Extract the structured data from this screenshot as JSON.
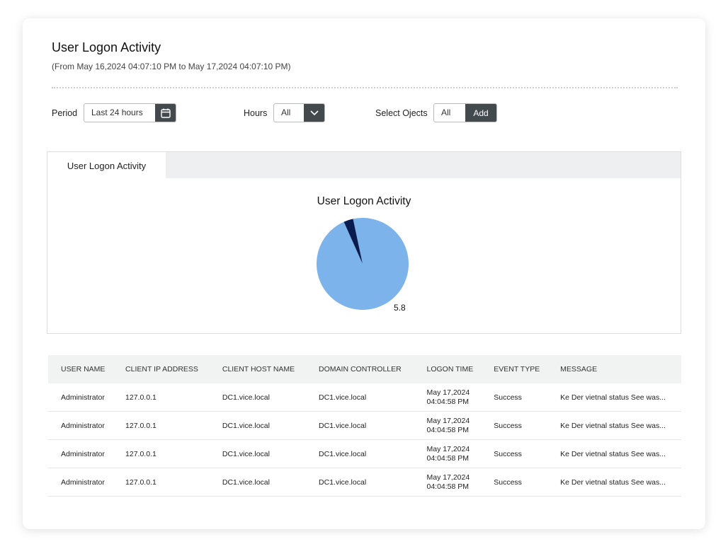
{
  "header": {
    "title": "User Logon Activity",
    "subtitle": "(From May 16,2024 04:07:10 PM to May 17,2024 04:07:10 PM)"
  },
  "filters": {
    "period_label": "Period",
    "period_value": "Last 24 hours",
    "period_icon": "calendar-icon",
    "hours_label": "Hours",
    "hours_value": "All",
    "hours_icon": "chevron-down-icon",
    "objects_label": "Select Ojects",
    "objects_value": "All",
    "objects_add": "Add"
  },
  "tabs": [
    {
      "label": "User Logon Activity",
      "active": true
    }
  ],
  "chart_data": {
    "type": "pie",
    "title": "User Logon Activity",
    "slices": [
      {
        "value": 5.8,
        "label": "5.8",
        "color": "#7db3eb"
      },
      {
        "value": 0.2,
        "label": "",
        "color": "#0a1b4e"
      }
    ]
  },
  "table": {
    "columns": [
      "USER NAME",
      "CLIENT IP ADDRESS",
      "CLIENT HOST NAME",
      "DOMAIN CONTROLLER",
      "LOGON TIME",
      "EVENT TYPE",
      "MESSAGE"
    ],
    "rows": [
      [
        "Administrator",
        "127.0.0.1",
        "DC1.vice.local",
        "DC1.vice.local",
        [
          "May 17,2024",
          "04:04:58 PM"
        ],
        "Success",
        "Ke Der vietnal status See was..."
      ],
      [
        "Administrator",
        "127.0.0.1",
        "DC1.vice.local",
        "DC1.vice.local",
        [
          "May 17,2024",
          "04:04:58 PM"
        ],
        "Success",
        "Ke Der vietnal status See was..."
      ],
      [
        "Administrator",
        "127.0.0.1",
        "DC1.vice.local",
        "DC1.vice.local",
        [
          "May 17,2024",
          "04:04:58 PM"
        ],
        "Success",
        "Ke Der vietnal status See was..."
      ],
      [
        "Administrator",
        "127.0.0.1",
        "DC1.vice.local",
        "DC1.vice.local",
        [
          "May 17,2024",
          "04:04:58 PM"
        ],
        "Success",
        "Ke Der vietnal status See was..."
      ]
    ]
  }
}
